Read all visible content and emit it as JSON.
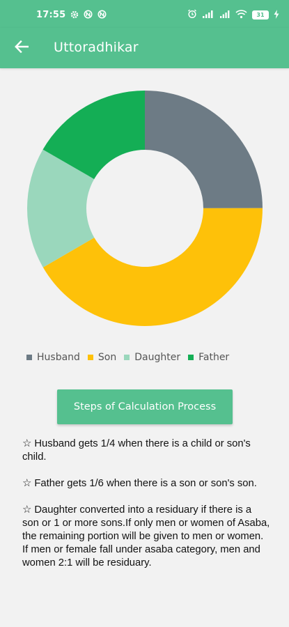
{
  "status_bar": {
    "time": "17:55",
    "battery": "31"
  },
  "app_bar": {
    "title": "Uttoradhikar",
    "back_icon": "arrow-left-icon"
  },
  "chart_data": {
    "type": "pie",
    "donut": true,
    "categories": [
      "Husband",
      "Son",
      "Daughter",
      "Father"
    ],
    "values": [
      25,
      41.7,
      16.7,
      16.7
    ],
    "colors": [
      "#6d7b85",
      "#fec109",
      "#9ad7bc",
      "#14ae55"
    ],
    "legend": "bottom"
  },
  "legend": {
    "items": [
      {
        "label": "Husband",
        "color": "#6d7b85"
      },
      {
        "label": "Son",
        "color": "#fec109"
      },
      {
        "label": "Daughter",
        "color": "#9ad7bc"
      },
      {
        "label": "Father",
        "color": "#14ae55"
      }
    ]
  },
  "steps_button": {
    "label": "Steps of Calculation Process"
  },
  "notes": [
    "☆  Husband gets 1/4 when there is a child or son's child.",
    "☆  Father gets 1/6 when there is a son or son's son.",
    "☆  Daughter converted into a residuary if there is a son or 1 or more sons.If only men or women of Asaba, the remaining portion will be given to men or women. If men or female fall under asaba category, men and women 2:1 will be residuary."
  ],
  "colors": {
    "primary": "#55c08f",
    "background": "#f2f2f2"
  }
}
